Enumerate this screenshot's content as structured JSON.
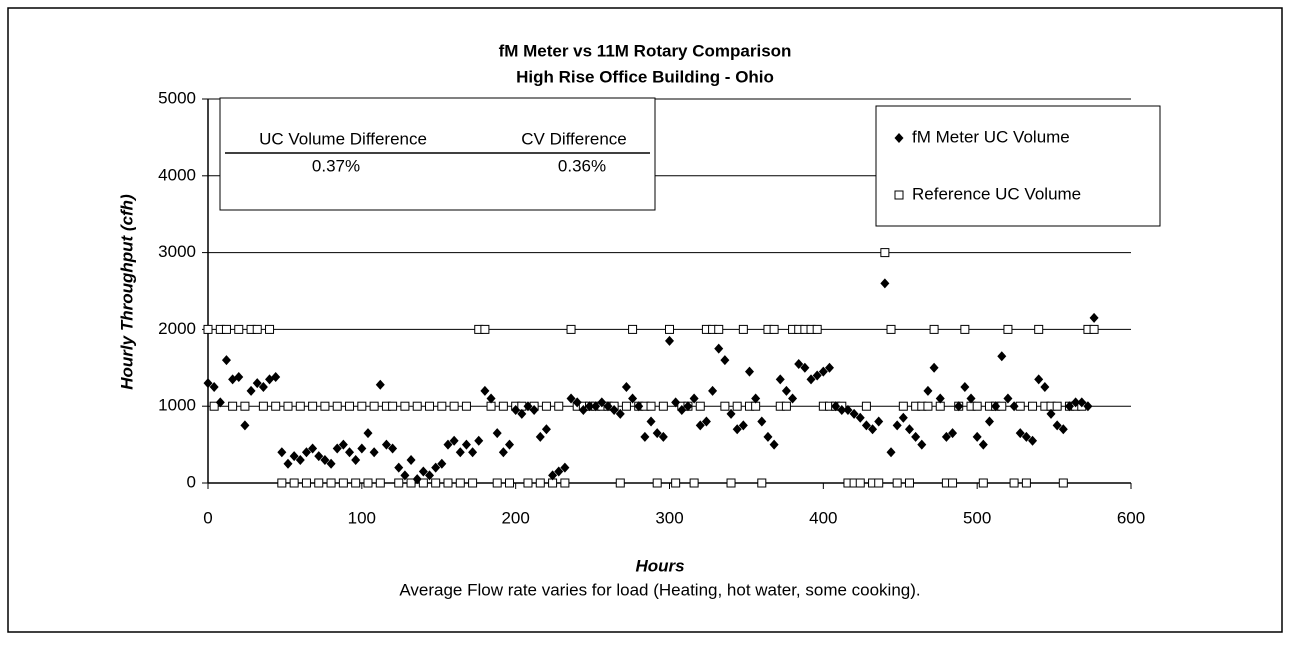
{
  "chart_data": {
    "type": "scatter",
    "title": "fM Meter vs 11M Rotary Comparison",
    "subtitle": "High Rise Office Building  - Ohio",
    "x_label": "Hours",
    "y_label": "Hourly Throughput (cfh)",
    "note": "Average Flow rate varies for load (Heating, hot water, some cooking).",
    "xlim": [
      0,
      600
    ],
    "ylim": [
      0,
      5000
    ],
    "xticks": [
      0,
      100,
      200,
      300,
      400,
      500,
      600
    ],
    "yticks": [
      0,
      1000,
      2000,
      3000,
      4000,
      5000
    ],
    "grid": true,
    "legend": "upper right",
    "inset_table": {
      "headers": [
        "UC Volume Difference",
        "CV Difference"
      ],
      "cells": [
        "0.37%",
        "0.36%"
      ]
    },
    "x": [
      0,
      4,
      8,
      12,
      16,
      20,
      24,
      28,
      32,
      36,
      40,
      44,
      48,
      52,
      56,
      60,
      64,
      68,
      72,
      76,
      80,
      84,
      88,
      92,
      96,
      100,
      104,
      108,
      112,
      116,
      120,
      124,
      128,
      132,
      136,
      140,
      144,
      148,
      152,
      156,
      160,
      164,
      168,
      172,
      176,
      180,
      184,
      188,
      192,
      196,
      200,
      204,
      208,
      212,
      216,
      220,
      224,
      228,
      232,
      236,
      240,
      244,
      248,
      252,
      256,
      260,
      264,
      268,
      272,
      276,
      280,
      284,
      288,
      292,
      296,
      300,
      304,
      308,
      312,
      316,
      320,
      324,
      328,
      332,
      336,
      340,
      344,
      348,
      352,
      356,
      360,
      364,
      368,
      372,
      376,
      380,
      384,
      388,
      392,
      396,
      400,
      404,
      408,
      412,
      416,
      420,
      424,
      428,
      432,
      436,
      440,
      444,
      448,
      452,
      456,
      460,
      464,
      468,
      472,
      476,
      480,
      484,
      488,
      492,
      496,
      500,
      504,
      508,
      512,
      516,
      520,
      524,
      528,
      532,
      536,
      540,
      544,
      548,
      552,
      556,
      560,
      564,
      568,
      572,
      576
    ],
    "series": [
      {
        "name": "fM Meter UC Volume",
        "color": "#000000",
        "marker": "diamond",
        "values": [
          1300,
          1250,
          1050,
          1600,
          1350,
          1380,
          750,
          1200,
          1300,
          1250,
          1350,
          1380,
          400,
          250,
          350,
          300,
          400,
          450,
          350,
          300,
          250,
          450,
          500,
          400,
          300,
          450,
          650,
          400,
          1280,
          500,
          450,
          200,
          100,
          300,
          50,
          150,
          100,
          200,
          250,
          500,
          550,
          400,
          500,
          400,
          550,
          1200,
          1100,
          650,
          400,
          500,
          950,
          900,
          1000,
          950,
          600,
          700,
          100,
          150,
          200,
          1100,
          1050,
          950,
          1000,
          1000,
          1050,
          1000,
          950,
          900,
          1250,
          1100,
          1000,
          600,
          800,
          650,
          600,
          1850,
          1050,
          950,
          1000,
          1100,
          750,
          800,
          1200,
          1750,
          1600,
          900,
          700,
          750,
          1450,
          1100,
          800,
          600,
          500,
          1350,
          1200,
          1100,
          1550,
          1500,
          1350,
          1400,
          1450,
          1500,
          1000,
          950,
          950,
          900,
          850,
          750,
          700,
          800,
          2600,
          400,
          750,
          850,
          700,
          600,
          500,
          1200,
          1500,
          1100,
          600,
          650,
          1000,
          1250,
          1100,
          600,
          500,
          800,
          1000,
          1650,
          1100,
          1000,
          650,
          600,
          550,
          1350,
          1250,
          900,
          750,
          700,
          1000,
          1050,
          1050,
          1000,
          2150
        ]
      },
      {
        "name": "Reference UC Volume",
        "color": "#000000",
        "marker": "square",
        "values": [
          2000,
          1000,
          2000,
          2000,
          1000,
          2000,
          1000,
          2000,
          2000,
          1000,
          2000,
          1000,
          0,
          1000,
          0,
          1000,
          0,
          1000,
          0,
          1000,
          0,
          1000,
          0,
          1000,
          0,
          1000,
          0,
          1000,
          0,
          1000,
          1000,
          0,
          1000,
          0,
          1000,
          0,
          1000,
          0,
          1000,
          0,
          1000,
          0,
          1000,
          0,
          2000,
          2000,
          1000,
          0,
          1000,
          0,
          1000,
          1000,
          0,
          1000,
          0,
          1000,
          0,
          1000,
          0,
          2000,
          1000,
          1000,
          1000,
          1000,
          1000,
          1000,
          1000,
          0,
          1000,
          2000,
          1000,
          1000,
          1000,
          0,
          1000,
          2000,
          0,
          1000,
          1000,
          0,
          1000,
          2000,
          2000,
          2000,
          1000,
          0,
          1000,
          2000,
          1000,
          1000,
          0,
          2000,
          2000,
          1000,
          1000,
          2000,
          2000,
          2000,
          2000,
          2000,
          1000,
          1000,
          1000,
          1000,
          0,
          0,
          0,
          1000,
          0,
          0,
          3000,
          2000,
          0,
          1000,
          0,
          1000,
          1000,
          1000,
          2000,
          1000,
          0,
          0,
          1000,
          2000,
          1000,
          1000,
          0,
          1000,
          1000,
          1000,
          2000,
          0,
          1000,
          0,
          1000,
          2000,
          1000,
          1000,
          1000,
          0,
          1000,
          1000,
          1000,
          2000,
          2000
        ]
      }
    ]
  }
}
